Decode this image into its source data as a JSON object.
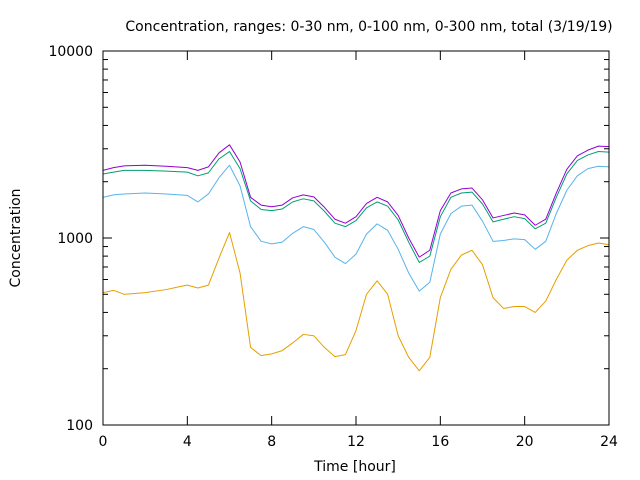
{
  "chart_data": {
    "type": "line",
    "title": "Concentration, ranges: 0-30 nm, 0-100 nm, 0-300 nm, total (3/19/19)",
    "xlabel": "Time [hour]",
    "ylabel": "Concentration",
    "xlim": [
      0,
      24
    ],
    "ylim": [
      100,
      10000
    ],
    "y_scale": "log",
    "grid": false,
    "legend": "none",
    "x_ticks": [
      0,
      4,
      8,
      12,
      16,
      20,
      24
    ],
    "y_ticks": [
      100,
      1000,
      10000
    ],
    "series": [
      {
        "color": "#e69f00",
        "points": [
          [
            0,
            510
          ],
          [
            0.5,
            525
          ],
          [
            1,
            500
          ],
          [
            2,
            510
          ],
          [
            3,
            530
          ],
          [
            3.5,
            545
          ],
          [
            4,
            560
          ],
          [
            4.5,
            540
          ],
          [
            5,
            560
          ],
          [
            5.5,
            780
          ],
          [
            6,
            1070
          ],
          [
            6.5,
            650
          ],
          [
            7,
            260
          ],
          [
            7.5,
            235
          ],
          [
            8,
            240
          ],
          [
            8.5,
            250
          ],
          [
            9,
            275
          ],
          [
            9.5,
            305
          ],
          [
            10,
            300
          ],
          [
            10.5,
            260
          ],
          [
            11,
            232
          ],
          [
            11.5,
            238
          ],
          [
            12,
            320
          ],
          [
            12.5,
            500
          ],
          [
            13,
            590
          ],
          [
            13.5,
            500
          ],
          [
            14,
            300
          ],
          [
            14.5,
            230
          ],
          [
            15,
            195
          ],
          [
            15.5,
            230
          ],
          [
            16,
            480
          ],
          [
            16.5,
            680
          ],
          [
            17,
            810
          ],
          [
            17.5,
            860
          ],
          [
            18,
            720
          ],
          [
            18.5,
            480
          ],
          [
            19,
            420
          ],
          [
            19.5,
            430
          ],
          [
            20,
            430
          ],
          [
            20.5,
            400
          ],
          [
            21,
            460
          ],
          [
            21.5,
            600
          ],
          [
            22,
            760
          ],
          [
            22.5,
            860
          ],
          [
            23,
            910
          ],
          [
            23.5,
            940
          ],
          [
            24,
            920
          ]
        ]
      },
      {
        "color": "#56b4e9",
        "points": [
          [
            0,
            1650
          ],
          [
            0.5,
            1700
          ],
          [
            1,
            1720
          ],
          [
            2,
            1740
          ],
          [
            3,
            1720
          ],
          [
            4,
            1690
          ],
          [
            4.5,
            1560
          ],
          [
            5,
            1720
          ],
          [
            5.5,
            2100
          ],
          [
            6,
            2450
          ],
          [
            6.5,
            1900
          ],
          [
            7,
            1150
          ],
          [
            7.5,
            960
          ],
          [
            8,
            930
          ],
          [
            8.5,
            950
          ],
          [
            9,
            1060
          ],
          [
            9.5,
            1150
          ],
          [
            10,
            1110
          ],
          [
            10.5,
            950
          ],
          [
            11,
            790
          ],
          [
            11.5,
            730
          ],
          [
            12,
            820
          ],
          [
            12.5,
            1050
          ],
          [
            13,
            1190
          ],
          [
            13.5,
            1100
          ],
          [
            14,
            870
          ],
          [
            14.5,
            650
          ],
          [
            15,
            520
          ],
          [
            15.5,
            580
          ],
          [
            16,
            1050
          ],
          [
            16.5,
            1350
          ],
          [
            17,
            1480
          ],
          [
            17.5,
            1500
          ],
          [
            18,
            1230
          ],
          [
            18.5,
            960
          ],
          [
            19,
            970
          ],
          [
            19.5,
            990
          ],
          [
            20,
            980
          ],
          [
            20.5,
            870
          ],
          [
            21,
            960
          ],
          [
            21.5,
            1350
          ],
          [
            22,
            1800
          ],
          [
            22.5,
            2150
          ],
          [
            23,
            2350
          ],
          [
            23.5,
            2420
          ],
          [
            24,
            2400
          ]
        ]
      },
      {
        "color": "#009e73",
        "points": [
          [
            0,
            2200
          ],
          [
            0.5,
            2250
          ],
          [
            1,
            2300
          ],
          [
            2,
            2300
          ],
          [
            3,
            2280
          ],
          [
            4,
            2250
          ],
          [
            4.5,
            2150
          ],
          [
            5,
            2230
          ],
          [
            5.5,
            2650
          ],
          [
            6,
            2900
          ],
          [
            6.5,
            2350
          ],
          [
            7,
            1580
          ],
          [
            7.5,
            1420
          ],
          [
            8,
            1400
          ],
          [
            8.5,
            1430
          ],
          [
            9,
            1560
          ],
          [
            9.5,
            1620
          ],
          [
            10,
            1580
          ],
          [
            10.5,
            1390
          ],
          [
            11,
            1200
          ],
          [
            11.5,
            1150
          ],
          [
            12,
            1240
          ],
          [
            12.5,
            1450
          ],
          [
            13,
            1560
          ],
          [
            13.5,
            1480
          ],
          [
            14,
            1250
          ],
          [
            14.5,
            950
          ],
          [
            15,
            740
          ],
          [
            15.5,
            800
          ],
          [
            16,
            1300
          ],
          [
            16.5,
            1650
          ],
          [
            17,
            1740
          ],
          [
            17.5,
            1760
          ],
          [
            18,
            1520
          ],
          [
            18.5,
            1220
          ],
          [
            19,
            1260
          ],
          [
            19.5,
            1300
          ],
          [
            20,
            1270
          ],
          [
            20.5,
            1120
          ],
          [
            21,
            1200
          ],
          [
            21.5,
            1650
          ],
          [
            22,
            2200
          ],
          [
            22.5,
            2600
          ],
          [
            23,
            2780
          ],
          [
            23.5,
            2900
          ],
          [
            24,
            2880
          ]
        ]
      },
      {
        "color": "#9400d3",
        "points": [
          [
            0,
            2300
          ],
          [
            0.5,
            2380
          ],
          [
            1,
            2430
          ],
          [
            2,
            2450
          ],
          [
            3,
            2420
          ],
          [
            4,
            2380
          ],
          [
            4.5,
            2300
          ],
          [
            5,
            2400
          ],
          [
            5.5,
            2850
          ],
          [
            6,
            3150
          ],
          [
            6.5,
            2550
          ],
          [
            7,
            1650
          ],
          [
            7.5,
            1500
          ],
          [
            8,
            1470
          ],
          [
            8.5,
            1500
          ],
          [
            9,
            1640
          ],
          [
            9.5,
            1700
          ],
          [
            10,
            1660
          ],
          [
            10.5,
            1460
          ],
          [
            11,
            1260
          ],
          [
            11.5,
            1200
          ],
          [
            12,
            1300
          ],
          [
            12.5,
            1530
          ],
          [
            13,
            1650
          ],
          [
            13.5,
            1560
          ],
          [
            14,
            1320
          ],
          [
            14.5,
            1000
          ],
          [
            15,
            790
          ],
          [
            15.5,
            860
          ],
          [
            16,
            1400
          ],
          [
            16.5,
            1740
          ],
          [
            17,
            1830
          ],
          [
            17.5,
            1850
          ],
          [
            18,
            1600
          ],
          [
            18.5,
            1280
          ],
          [
            19,
            1320
          ],
          [
            19.5,
            1360
          ],
          [
            20,
            1330
          ],
          [
            20.5,
            1170
          ],
          [
            21,
            1260
          ],
          [
            21.5,
            1740
          ],
          [
            22,
            2330
          ],
          [
            22.5,
            2750
          ],
          [
            23,
            2950
          ],
          [
            23.5,
            3100
          ],
          [
            24,
            3080
          ]
        ]
      }
    ]
  }
}
